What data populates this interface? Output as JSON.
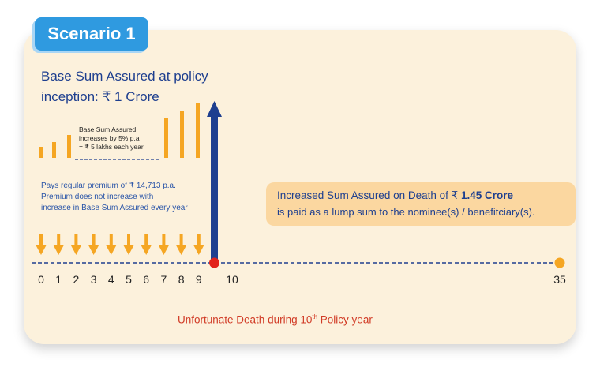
{
  "scenario_label": "Scenario 1",
  "base_sum": {
    "line1": "Base Sum Assured at policy",
    "line2": "inception: ₹ 1 Crore"
  },
  "increase_note": {
    "line1": "Base Sum Assured",
    "line2": "increases by 5% p.a",
    "line3": "= ₹ 5 lakhs each year"
  },
  "premium_note": {
    "line1": "Pays regular premium of ₹ 14,713 p.a.",
    "line2": "Premium does not increase with",
    "line3": "increase in Base Sum Assured every year"
  },
  "death_payout": {
    "prefix": "Increased Sum Assured on Death of ₹ ",
    "amount": "1.45 Crore",
    "line2": "is paid as a lump sum to the nominee(s) / benefitciary(s)."
  },
  "death_caption": {
    "pre": "Unfortunate Death during 10",
    "sup": "th",
    "post": " Policy year"
  },
  "timeline": {
    "year_labels": [
      "0",
      "1",
      "2",
      "3",
      "4",
      "5",
      "6",
      "7",
      "8",
      "9",
      "10",
      "35"
    ],
    "death_year": 10,
    "end_year": 35,
    "premium_payment_count": 10
  },
  "colors": {
    "orange": "#f5a623",
    "navy": "#1e3f8f",
    "death_dot": "#e2231a",
    "tab": "#2f9ae0",
    "card": "#fcf1dc"
  }
}
